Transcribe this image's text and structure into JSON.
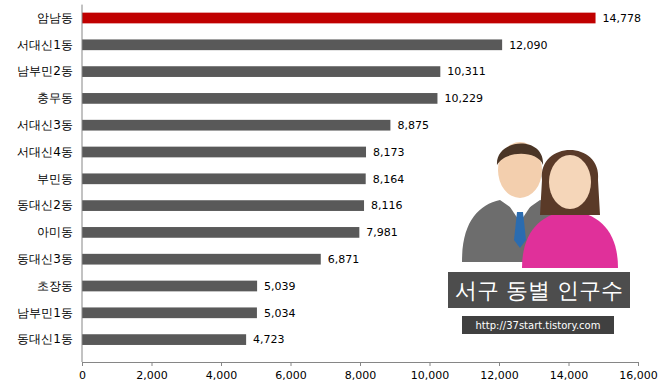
{
  "chart_data": {
    "type": "bar",
    "orientation": "horizontal",
    "title": "서구 동별 인구수",
    "annotations": [
      "http://37start.tistory.com"
    ],
    "categories": [
      "암남동",
      "서대신1동",
      "남부민2동",
      "충무동",
      "서대신3동",
      "서대신4동",
      "부민동",
      "동대신2동",
      "아미동",
      "동대신3동",
      "초장동",
      "남부민1동",
      "동대신1동"
    ],
    "values": [
      14778,
      12090,
      10311,
      10229,
      8875,
      8173,
      8164,
      8116,
      7981,
      6871,
      5039,
      5034,
      4723
    ],
    "value_labels": [
      "14,778",
      "12,090",
      "10,311",
      "10,229",
      "8,875",
      "8,173",
      "8,164",
      "8,116",
      "7,981",
      "6,871",
      "5,039",
      "5,034",
      "4,723"
    ],
    "colors": [
      "#c00000",
      "#595959",
      "#595959",
      "#595959",
      "#595959",
      "#595959",
      "#595959",
      "#595959",
      "#595959",
      "#595959",
      "#595959",
      "#595959",
      "#595959"
    ],
    "xlim": [
      0,
      16000
    ],
    "xticks": [
      0,
      {
        "value": 2000,
        "label": "2,000"
      },
      {
        "value": 4000,
        "label": "4,000"
      },
      {
        "value": 6000,
        "label": "6,000"
      },
      {
        "value": 8000,
        "label": "8,000"
      },
      {
        "value": 10000,
        "label": "10,000"
      },
      {
        "value": 12000,
        "label": "12,000"
      },
      {
        "value": 14000,
        "label": "14,000"
      },
      {
        "value": 16000,
        "label": "16,000"
      }
    ],
    "data_labels": true,
    "grid": false
  }
}
